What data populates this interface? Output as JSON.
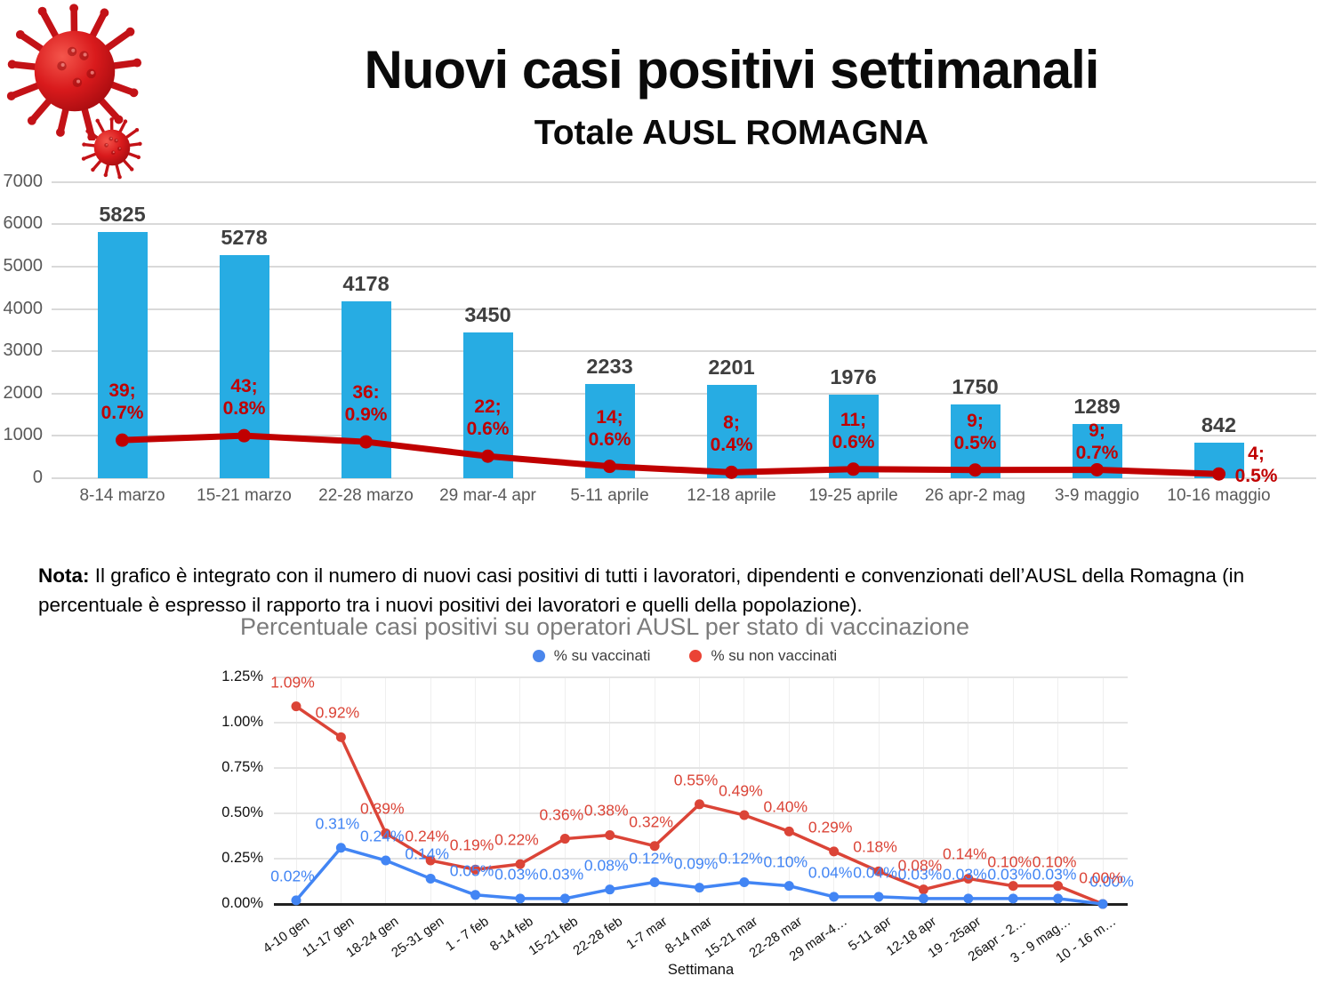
{
  "page": {
    "title": "Nuovi casi positivi settimanali",
    "subtitle": "Totale AUSL ROMAGNA"
  },
  "note": {
    "label": "Nota:",
    "text": " Il grafico è integrato con il numero di nuovi casi positivi di tutti i lavoratori, dipendenti e convenzionati dell’AUSL della Romagna (in percentuale è espresso il rapporto tra i nuovi positivi dei lavoratori e quelli della popolazione)."
  },
  "colors": {
    "bar_blue": "#27ace3",
    "line_dark_red": "#c00000",
    "annotation_red": "#c00000",
    "value_label": "#3f3f3f",
    "axis_gray": "#595959",
    "grid_gray": "#d9d9d9",
    "vacc_blue": "#4285f4",
    "novacc_red": "#db4437",
    "legend_blue_dot": "#4a86ec",
    "legend_red_dot": "#ea4335"
  },
  "chart_data": [
    {
      "id": "weekly-cases",
      "type": "bar",
      "title": "Nuovi casi positivi settimanali - Totale AUSL ROMAGNA",
      "categories": [
        "8-14 marzo",
        "15-21 marzo",
        "22-28 marzo",
        "29 mar-4 apr",
        "5-11 aprile",
        "12-18 aprile",
        "19-25 aprile",
        "26 apr-2 mag",
        "3-9 maggio",
        "10-16 maggio"
      ],
      "values": [
        5825,
        5278,
        4178,
        3450,
        2233,
        2201,
        1976,
        1750,
        1289,
        842
      ],
      "line_annotations": [
        [
          "39;",
          "0.7%"
        ],
        [
          "43;",
          "0.8%"
        ],
        [
          "36:",
          "0.9%"
        ],
        [
          "22;",
          "0.6%"
        ],
        [
          "14;",
          "0.6%"
        ],
        [
          "8;",
          "0.4%"
        ],
        [
          "11;",
          "0.6%"
        ],
        [
          "9;",
          "0.5%"
        ],
        [
          "9;",
          "0.7%"
        ],
        [
          "4;",
          "0.5%"
        ]
      ],
      "line_plot_values": [
        900,
        1005,
        860,
        520,
        280,
        140,
        215,
        195,
        200,
        100
      ],
      "ylim": [
        0,
        7000
      ],
      "ytick_step": 1000,
      "grid": true,
      "legend_position": "none"
    },
    {
      "id": "operators-by-vaccination",
      "type": "line",
      "title": "Percentuale casi positivi su operatori AUSL per stato di vaccinazione",
      "xlabel": "Settimana",
      "categories": [
        "4-10 gen",
        "11-17 gen",
        "18-24 gen",
        "25-31 gen",
        "1 - 7 feb",
        "8-14 feb",
        "15-21 feb",
        "22-28 feb",
        "1-7 mar",
        "8-14 mar",
        "15-21 mar",
        "22-28 mar",
        "29 mar-4…",
        "5-11 apr",
        "12-18 apr",
        "19 - 25apr",
        "26apr - 2…",
        "3 - 9 mag…",
        "10 - 16 m…"
      ],
      "series": [
        {
          "name": "% su vaccinati",
          "values": [
            0.02,
            0.31,
            0.24,
            0.14,
            0.05,
            0.03,
            0.03,
            0.08,
            0.12,
            0.09,
            0.12,
            0.1,
            0.04,
            0.04,
            0.03,
            0.03,
            0.03,
            0.03,
            0.0
          ],
          "labels": [
            "0.02%",
            "0.31%",
            "0.24%",
            "0.14%",
            "0.05%",
            "0.03%",
            "0.03%",
            "0.08%",
            "0.12%",
            "0.09%",
            "0.12%",
            "0.10%",
            "0.04%",
            "0.04%",
            "0.03%",
            "0.03%",
            "0.03%",
            "0.03%",
            "0.00%"
          ]
        },
        {
          "name": "% su non vaccinati",
          "values": [
            1.09,
            0.92,
            0.39,
            0.24,
            0.19,
            0.22,
            0.36,
            0.38,
            0.32,
            0.55,
            0.49,
            0.4,
            0.29,
            0.18,
            0.08,
            0.14,
            0.1,
            0.1,
            0.0
          ],
          "labels": [
            "1.09%",
            "0.92%",
            "0.39%",
            "0.24%",
            "0.19%",
            "0.22%",
            "0.36%",
            "0.38%",
            "0.32%",
            "0.55%",
            "0.49%",
            "0.40%",
            "0.29%",
            "0.18%",
            "0.08%",
            "0.14%",
            "0.10%",
            "0.10%",
            "0.00%"
          ]
        }
      ],
      "ylim": [
        0,
        1.25
      ],
      "yticks": [
        0,
        0.25,
        0.5,
        0.75,
        1.0,
        1.25
      ],
      "ytick_labels": [
        "0.00%",
        "0.25%",
        "0.50%",
        "0.75%",
        "1.00%",
        "1.25%"
      ],
      "grid": true,
      "legend_position": "top"
    }
  ]
}
